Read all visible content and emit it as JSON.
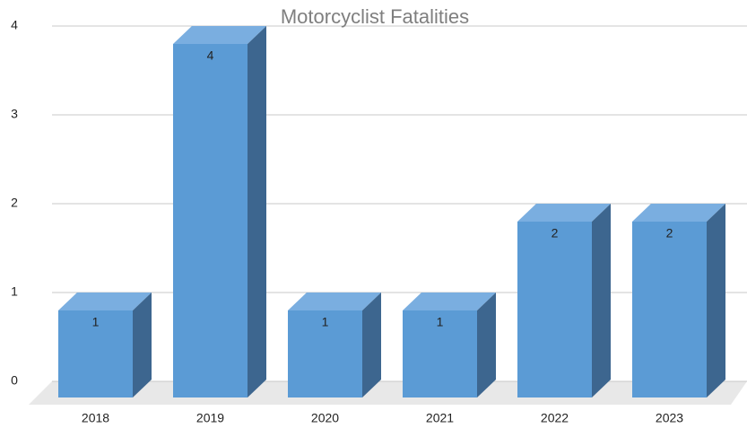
{
  "chart_data": {
    "type": "bar3d",
    "title": "Motorcyclist Fatalities",
    "categories": [
      "2018",
      "2019",
      "2020",
      "2021",
      "2022",
      "2023"
    ],
    "values": [
      1,
      4,
      1,
      1,
      2,
      2
    ],
    "color": "#5b9bd5",
    "ylim": [
      0,
      4
    ],
    "yticks": [
      0,
      1,
      2,
      3,
      4
    ],
    "grid": true
  }
}
